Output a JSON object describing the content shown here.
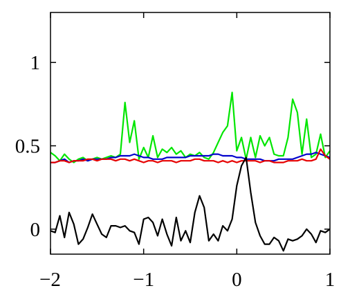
{
  "chart_data": {
    "type": "line",
    "title": "",
    "xlabel": "",
    "ylabel": "",
    "xlim": [
      -2,
      1
    ],
    "ylim": [
      -0.15,
      1.3
    ],
    "grid": false,
    "legend": "none",
    "x_ticks": [
      {
        "value": -2,
        "label": "−2"
      },
      {
        "value": -1,
        "label": "−1"
      },
      {
        "value": 0,
        "label": "0"
      },
      {
        "value": 1,
        "label": "1"
      }
    ],
    "y_ticks": [
      {
        "value": 0,
        "label": "0"
      },
      {
        "value": 0.5,
        "label": "0.5"
      },
      {
        "value": 1,
        "label": "1"
      }
    ],
    "x": [
      -2.0,
      -1.95,
      -1.9,
      -1.85,
      -1.8,
      -1.75,
      -1.7,
      -1.65,
      -1.6,
      -1.55,
      -1.5,
      -1.45,
      -1.4,
      -1.35,
      -1.3,
      -1.25,
      -1.2,
      -1.15,
      -1.1,
      -1.05,
      -1.0,
      -0.95,
      -0.9,
      -0.85,
      -0.8,
      -0.75,
      -0.7,
      -0.65,
      -0.6,
      -0.55,
      -0.5,
      -0.45,
      -0.4,
      -0.35,
      -0.3,
      -0.25,
      -0.2,
      -0.15,
      -0.1,
      -0.05,
      0.0,
      0.05,
      0.1,
      0.15,
      0.2,
      0.25,
      0.3,
      0.35,
      0.4,
      0.45,
      0.5,
      0.55,
      0.6,
      0.65,
      0.7,
      0.75,
      0.8,
      0.85,
      0.9,
      0.95,
      1.0
    ],
    "series": [
      {
        "color": "#00e600",
        "values": [
          0.46,
          0.44,
          0.41,
          0.45,
          0.42,
          0.4,
          0.42,
          0.43,
          0.41,
          0.42,
          0.43,
          0.42,
          0.43,
          0.44,
          0.43,
          0.45,
          0.76,
          0.52,
          0.65,
          0.42,
          0.49,
          0.43,
          0.56,
          0.43,
          0.48,
          0.46,
          0.49,
          0.45,
          0.47,
          0.43,
          0.45,
          0.44,
          0.46,
          0.43,
          0.42,
          0.46,
          0.52,
          0.58,
          0.62,
          0.82,
          0.47,
          0.55,
          0.42,
          0.55,
          0.43,
          0.56,
          0.5,
          0.55,
          0.45,
          0.44,
          0.44,
          0.55,
          0.78,
          0.7,
          0.45,
          0.66,
          0.43,
          0.45,
          0.57,
          0.43,
          0.47
        ]
      },
      {
        "color": "#0000cc",
        "values": [
          0.4,
          0.4,
          0.41,
          0.42,
          0.4,
          0.41,
          0.41,
          0.42,
          0.41,
          0.42,
          0.42,
          0.42,
          0.42,
          0.43,
          0.43,
          0.44,
          0.44,
          0.44,
          0.45,
          0.44,
          0.43,
          0.43,
          0.42,
          0.42,
          0.42,
          0.43,
          0.43,
          0.43,
          0.43,
          0.43,
          0.44,
          0.44,
          0.44,
          0.44,
          0.44,
          0.45,
          0.45,
          0.44,
          0.44,
          0.44,
          0.43,
          0.43,
          0.42,
          0.42,
          0.42,
          0.42,
          0.41,
          0.41,
          0.41,
          0.42,
          0.42,
          0.42,
          0.42,
          0.43,
          0.44,
          0.45,
          0.45,
          0.46,
          0.45,
          0.44,
          0.43
        ]
      },
      {
        "color": "#e60000",
        "values": [
          0.4,
          0.4,
          0.41,
          0.41,
          0.4,
          0.41,
          0.41,
          0.41,
          0.42,
          0.42,
          0.41,
          0.42,
          0.42,
          0.42,
          0.41,
          0.42,
          0.42,
          0.41,
          0.42,
          0.41,
          0.4,
          0.41,
          0.41,
          0.4,
          0.41,
          0.41,
          0.41,
          0.4,
          0.41,
          0.41,
          0.41,
          0.42,
          0.42,
          0.41,
          0.41,
          0.41,
          0.4,
          0.41,
          0.4,
          0.41,
          0.4,
          0.41,
          0.41,
          0.41,
          0.41,
          0.4,
          0.41,
          0.41,
          0.4,
          0.4,
          0.4,
          0.41,
          0.41,
          0.41,
          0.42,
          0.41,
          0.41,
          0.42,
          0.48,
          0.44,
          0.42
        ]
      },
      {
        "color": "#000000",
        "values": [
          -0.01,
          -0.02,
          0.08,
          -0.05,
          0.1,
          0.03,
          -0.09,
          -0.06,
          0.01,
          0.09,
          0.03,
          -0.03,
          -0.05,
          0.02,
          0.02,
          0.01,
          0.02,
          -0.01,
          -0.02,
          -0.09,
          0.06,
          0.07,
          0.04,
          -0.04,
          0.06,
          -0.03,
          -0.1,
          0.07,
          -0.07,
          -0.01,
          -0.08,
          0.1,
          0.2,
          0.13,
          -0.07,
          -0.03,
          -0.07,
          0.02,
          -0.01,
          0.06,
          0.26,
          0.38,
          0.43,
          0.22,
          0.04,
          -0.04,
          -0.09,
          -0.09,
          -0.05,
          -0.07,
          -0.13,
          -0.06,
          -0.07,
          -0.06,
          -0.04,
          0.0,
          -0.03,
          -0.08,
          -0.01,
          -0.02,
          0.0
        ]
      }
    ]
  }
}
